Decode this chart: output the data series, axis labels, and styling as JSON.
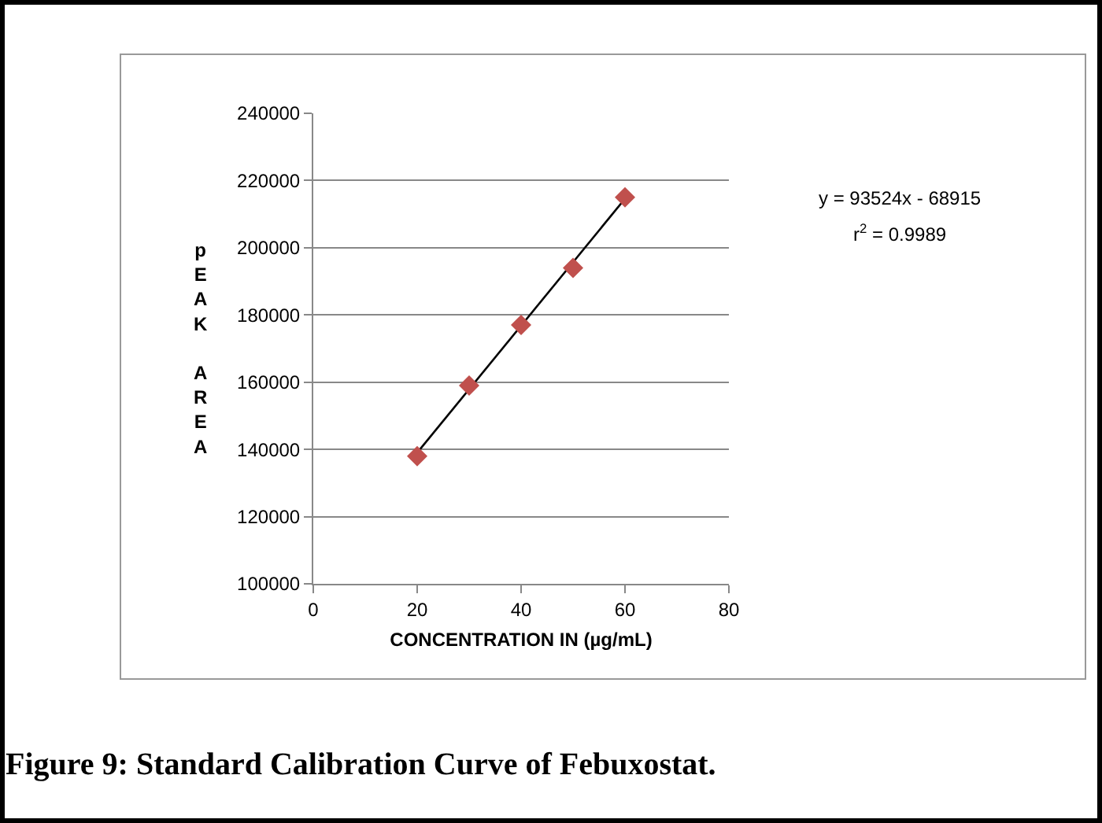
{
  "chart_data": {
    "type": "scatter",
    "title": "Figure 9: Standard Calibration Curve of Febuxostat.",
    "xlabel": "CONCENTRATION IN (µg/mL)",
    "ylabel": "pEAK AREA",
    "x": [
      20,
      30,
      40,
      50,
      60
    ],
    "series": [
      {
        "color": "#c0504d",
        "marker": "diamond",
        "values": [
          138000,
          159000,
          177000,
          194000,
          215000
        ]
      },
      {
        "type": "line",
        "color": "#000000",
        "x": [
          20,
          60
        ],
        "values": [
          139000,
          214600
        ]
      }
    ],
    "xlim": [
      0,
      80
    ],
    "xticks": [
      0,
      20,
      40,
      60,
      80
    ],
    "ylim": [
      100000,
      240000
    ],
    "yticks": [
      100000,
      120000,
      140000,
      160000,
      180000,
      200000,
      220000,
      240000
    ],
    "grid": "y",
    "annotations": [
      "y = 93524x - 68915",
      "r$^{2}$ = 0.9989"
    ]
  }
}
